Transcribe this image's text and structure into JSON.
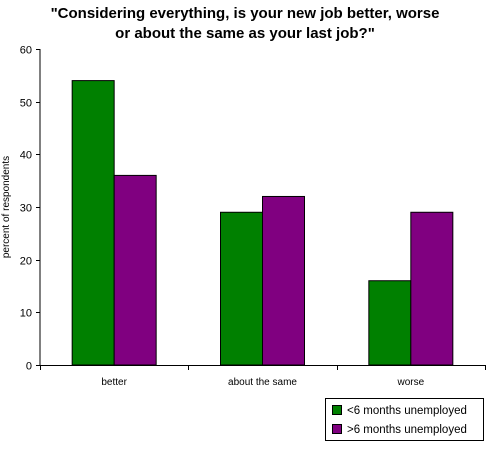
{
  "title_lines": [
    "\"Considering everything, is your new job better, worse",
    "or about the same as your last job?\""
  ],
  "chart_data": {
    "type": "bar",
    "title": "\"Considering everything, is your new job better, worse or about the same as your last job?\"",
    "xlabel": "",
    "ylabel": "percent of respondents",
    "categories": [
      "better",
      "about the same",
      "worse"
    ],
    "series": [
      {
        "name": "<6 months unemployed",
        "color": "#008000",
        "values": [
          54,
          29,
          16
        ]
      },
      {
        "name": ">6 months unemployed",
        "color": "#800080",
        "values": [
          36,
          32,
          29
        ]
      }
    ],
    "ylim": [
      0,
      60
    ],
    "yticks": [
      0,
      10,
      20,
      30,
      40,
      50,
      60
    ],
    "grid": false,
    "legend_position": "bottom-right"
  }
}
